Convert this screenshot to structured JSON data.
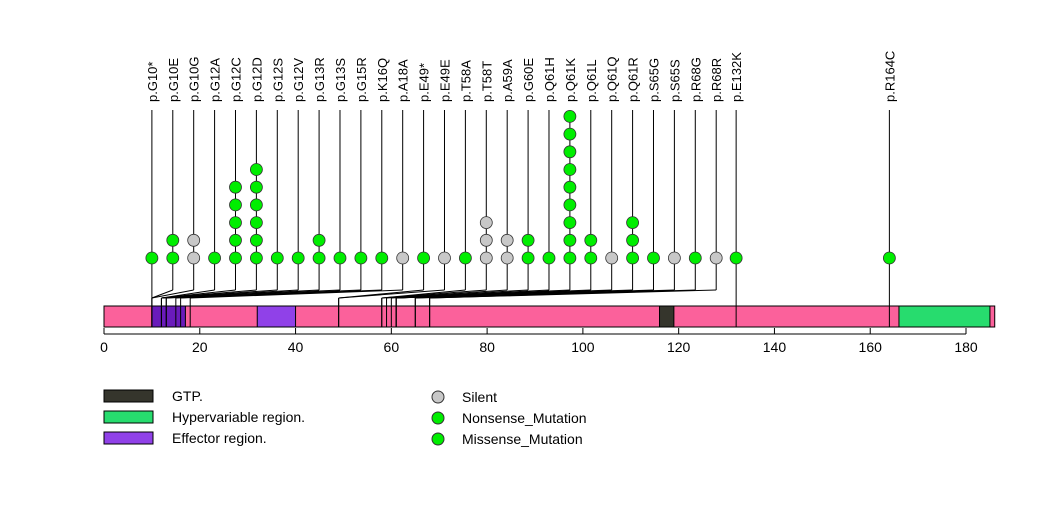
{
  "chart_data": {
    "type": "lollipop",
    "title": "",
    "xlabel": "",
    "ylabel": "",
    "xlim": [
      0,
      186
    ],
    "x_ticks": [
      0,
      20,
      40,
      60,
      80,
      100,
      120,
      140,
      160,
      180
    ],
    "protein_length": 186,
    "colors": {
      "backbone": "#fb619b",
      "Silent": "#c8c8c8",
      "Nonsense_Mutation": "#00ee00",
      "Missense_Mutation": "#00ee00",
      "GTP": "#35352c",
      "GTP_overlap": "#6a1bbb",
      "Hypervariable": "#27dc6e",
      "Effector": "#9041e8"
    },
    "domains": [
      {
        "name": "GTP.",
        "start": 10,
        "end": 17,
        "color_key": "GTP_overlap"
      },
      {
        "name": "Effector region.",
        "start": 32,
        "end": 40,
        "color_key": "Effector"
      },
      {
        "name": "GTP.",
        "start": 116,
        "end": 119,
        "color_key": "GTP"
      },
      {
        "name": "Hypervariable region.",
        "start": 166,
        "end": 185,
        "color_key": "Hypervariable"
      }
    ],
    "mutations": [
      {
        "label": "p.G10*",
        "pos": 10,
        "type": "Nonsense_Mutation",
        "count": 1
      },
      {
        "label": "p.G10E",
        "pos": 10,
        "type": "Missense_Mutation",
        "count": 2
      },
      {
        "label": "p.G10G",
        "pos": 10,
        "type": "Silent",
        "count": 2
      },
      {
        "label": "p.G12A",
        "pos": 12,
        "type": "Missense_Mutation",
        "count": 1
      },
      {
        "label": "p.G12C",
        "pos": 12,
        "type": "Missense_Mutation",
        "count": 5
      },
      {
        "label": "p.G12D",
        "pos": 12,
        "type": "Missense_Mutation",
        "count": 6
      },
      {
        "label": "p.G12S",
        "pos": 12,
        "type": "Missense_Mutation",
        "count": 1
      },
      {
        "label": "p.G12V",
        "pos": 12,
        "type": "Missense_Mutation",
        "count": 1
      },
      {
        "label": "p.G13R",
        "pos": 13,
        "type": "Missense_Mutation",
        "count": 2
      },
      {
        "label": "p.G13S",
        "pos": 13,
        "type": "Missense_Mutation",
        "count": 1
      },
      {
        "label": "p.G15R",
        "pos": 15,
        "type": "Missense_Mutation",
        "count": 1
      },
      {
        "label": "p.K16Q",
        "pos": 16,
        "type": "Missense_Mutation",
        "count": 1
      },
      {
        "label": "p.A18A",
        "pos": 18,
        "type": "Silent",
        "count": 1
      },
      {
        "label": "p.E49*",
        "pos": 49,
        "type": "Nonsense_Mutation",
        "count": 1
      },
      {
        "label": "p.E49E",
        "pos": 49,
        "type": "Silent",
        "count": 1
      },
      {
        "label": "p.T58A",
        "pos": 58,
        "type": "Missense_Mutation",
        "count": 1
      },
      {
        "label": "p.T58T",
        "pos": 58,
        "type": "Silent",
        "count": 3
      },
      {
        "label": "p.A59A",
        "pos": 59,
        "type": "Silent",
        "count": 2
      },
      {
        "label": "p.G60E",
        "pos": 60,
        "type": "Missense_Mutation",
        "count": 2
      },
      {
        "label": "p.Q61H",
        "pos": 61,
        "type": "Missense_Mutation",
        "count": 1
      },
      {
        "label": "p.Q61K",
        "pos": 61,
        "type": "Missense_Mutation",
        "count": 9
      },
      {
        "label": "p.Q61L",
        "pos": 61,
        "type": "Missense_Mutation",
        "count": 2
      },
      {
        "label": "p.Q61Q",
        "pos": 61,
        "type": "Silent",
        "count": 1
      },
      {
        "label": "p.Q61R",
        "pos": 61,
        "type": "Missense_Mutation",
        "count": 3
      },
      {
        "label": "p.S65G",
        "pos": 65,
        "type": "Missense_Mutation",
        "count": 1
      },
      {
        "label": "p.S65S",
        "pos": 65,
        "type": "Silent",
        "count": 1
      },
      {
        "label": "p.R68G",
        "pos": 68,
        "type": "Missense_Mutation",
        "count": 1
      },
      {
        "label": "p.R68R",
        "pos": 68,
        "type": "Silent",
        "count": 1
      },
      {
        "label": "p.E132K",
        "pos": 132,
        "type": "Missense_Mutation",
        "count": 1
      },
      {
        "label": "p.R164C",
        "pos": 164,
        "type": "Missense_Mutation",
        "count": 1
      }
    ],
    "legend": {
      "position": "bottom-left",
      "domains": [
        {
          "label": "GTP.",
          "color_key": "GTP"
        },
        {
          "label": "Hypervariable region.",
          "color_key": "Hypervariable"
        },
        {
          "label": "Effector region.",
          "color_key": "Effector"
        }
      ],
      "mutation_types": [
        {
          "label": "Silent",
          "color_key": "Silent"
        },
        {
          "label": "Nonsense_Mutation",
          "color_key": "Nonsense_Mutation"
        },
        {
          "label": "Missense_Mutation",
          "color_key": "Missense_Mutation"
        }
      ]
    }
  }
}
